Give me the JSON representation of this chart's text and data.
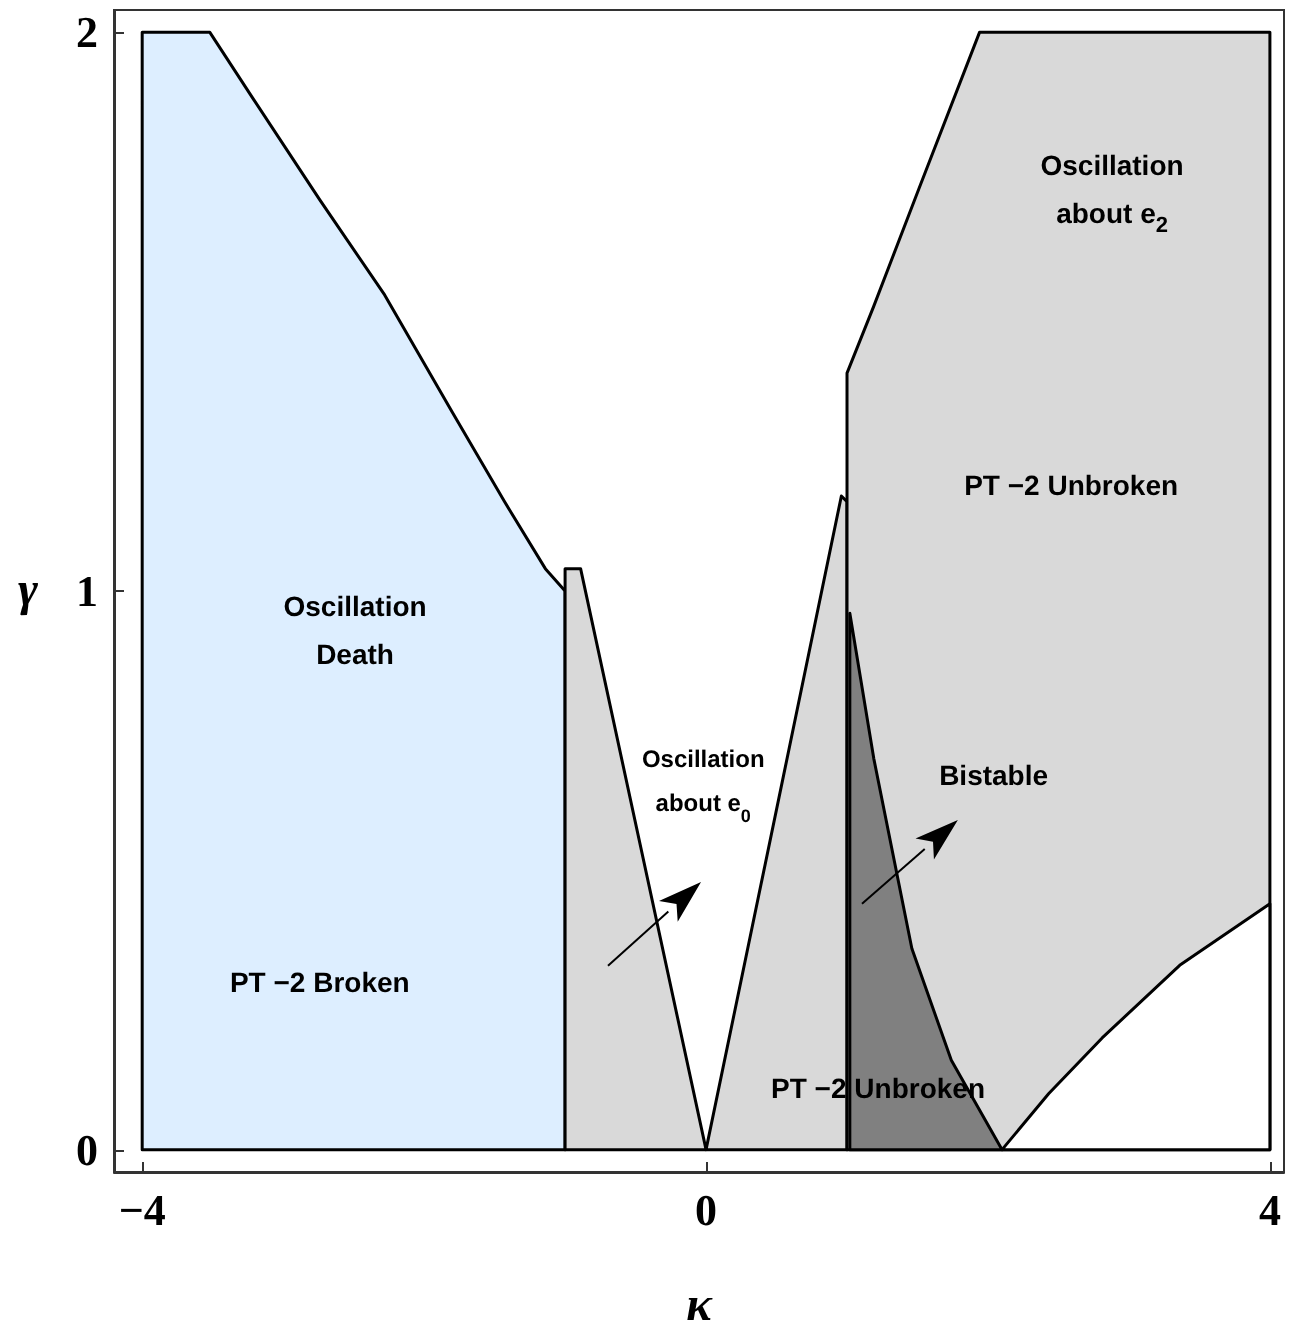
{
  "chart_data": {
    "type": "area",
    "xlabel": "κ",
    "ylabel": "γ",
    "xlim": [
      -4.2,
      4.1
    ],
    "ylim": [
      -0.04,
      2.04
    ],
    "xticks": [
      -4,
      0,
      4
    ],
    "yticks": [
      0,
      1,
      2
    ],
    "series": [
      {
        "color": "#ddeeff",
        "x": [
          -4,
          -3.52,
          -3.21,
          -2.74,
          -2.28,
          -1.8,
          -1.43,
          -1.14,
          -1.0
        ],
        "values": [
          2,
          2,
          1.88,
          1.7,
          1.53,
          1.32,
          1.16,
          1.04,
          1.0
        ]
      },
      {
        "color": "#d9d9d9",
        "x": [
          -1.0,
          -0.89,
          0
        ],
        "values": [
          1.04,
          1.04,
          0
        ]
      },
      {
        "color": "#d9d9d9",
        "x": [
          0,
          0.55,
          0.96,
          1.0
        ],
        "values": [
          0,
          0.67,
          1.17,
          1.16
        ]
      },
      {
        "color": "#d9d9d9",
        "x": [
          1.0,
          1.19,
          1.51,
          1.94,
          4.0
        ],
        "values": [
          1.39,
          1.51,
          1.72,
          2,
          2
        ]
      },
      {
        "color": "#ffffff",
        "x": [
          2.1,
          2.43,
          2.81,
          3.36,
          4.0
        ],
        "values": [
          0,
          0.1,
          0.2,
          0.33,
          0.44
        ]
      },
      {
        "color": "#808080",
        "x": [
          1.02,
          1.19,
          1.46,
          1.74,
          2.1
        ],
        "values": [
          0.96,
          0.7,
          0.36,
          0.16,
          0
        ]
      }
    ],
    "annotations": [
      "Oscillation\nDeath",
      "PT −2 Broken",
      "Oscillation\nabout e$_{0}$",
      "Bistable",
      "PT −2 Unbroken",
      "PT −2 Unbroken",
      "Oscillation\nabout e$_{2}$"
    ]
  }
}
